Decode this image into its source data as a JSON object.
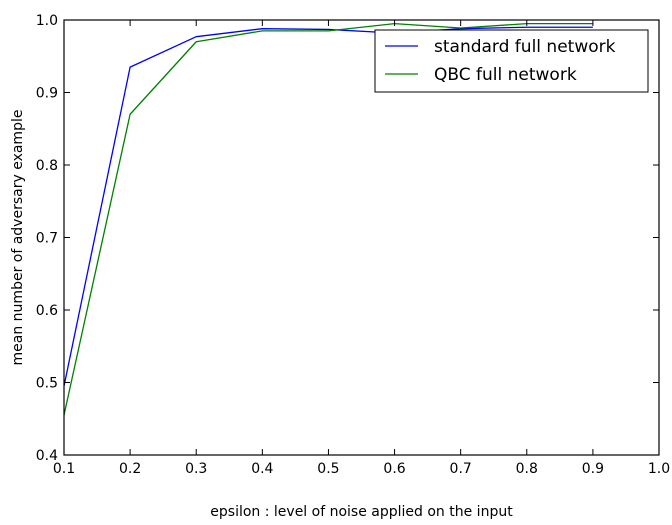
{
  "chart_data": {
    "type": "line",
    "title": "",
    "xlabel": "epsilon : level of noise applied on the input",
    "ylabel": "mean number of adversary example",
    "xlim": [
      0.1,
      1.0
    ],
    "ylim": [
      0.4,
      1.0
    ],
    "xticks": [
      "0.1",
      "0.2",
      "0.3",
      "0.4",
      "0.5",
      "0.6",
      "0.7",
      "0.8",
      "0.9",
      "1.0"
    ],
    "yticks": [
      "0.4",
      "0.5",
      "0.6",
      "0.7",
      "0.8",
      "0.9",
      "1.0"
    ],
    "grid": false,
    "legend_position": "top-right",
    "x": [
      0.1,
      0.2,
      0.3,
      0.4,
      0.5,
      0.6,
      0.7,
      0.8,
      0.9
    ],
    "series": [
      {
        "name": "standard full network",
        "color": "#0000ff",
        "values": [
          0.495,
          0.935,
          0.977,
          0.988,
          0.987,
          0.982,
          0.988,
          0.99,
          0.99
        ]
      },
      {
        "name": "QBC full network",
        "color": "#008000",
        "values": [
          0.455,
          0.87,
          0.97,
          0.985,
          0.985,
          0.995,
          0.989,
          0.995,
          0.995
        ]
      }
    ]
  }
}
